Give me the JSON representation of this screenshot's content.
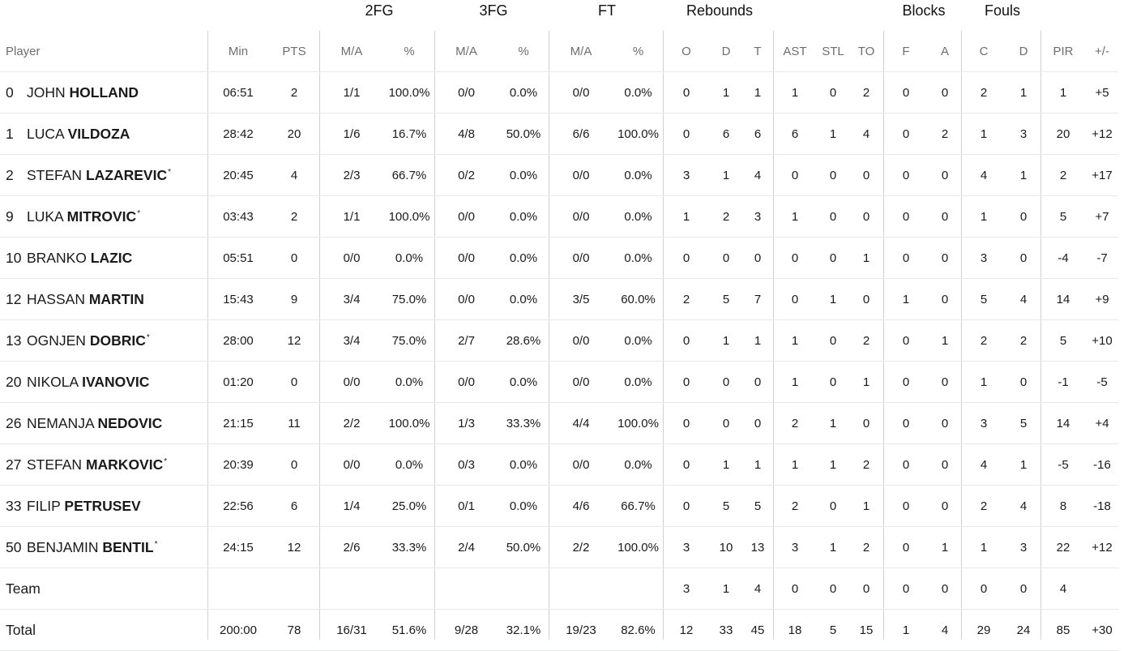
{
  "groups": [
    "2FG",
    "3FG",
    "FT",
    "Rebounds",
    "Blocks",
    "Fouls"
  ],
  "columns": {
    "player": "Player",
    "min": "Min",
    "pts": "PTS",
    "fg2_ma": "M/A",
    "fg2_pct": "%",
    "fg3_ma": "M/A",
    "fg3_pct": "%",
    "ft_ma": "M/A",
    "ft_pct": "%",
    "reb_o": "O",
    "reb_d": "D",
    "reb_t": "T",
    "ast": "AST",
    "stl": "STL",
    "to": "TO",
    "blk_f": "F",
    "blk_a": "A",
    "foul_c": "C",
    "foul_d": "D",
    "pir": "PIR",
    "pm": "+/-"
  },
  "players": [
    {
      "num": "0",
      "first": "JOHN",
      "last": "HOLLAND",
      "star": "",
      "min": "06:51",
      "pts": "2",
      "fg2_ma": "1/1",
      "fg2_pct": "100.0%",
      "fg3_ma": "0/0",
      "fg3_pct": "0.0%",
      "ft_ma": "0/0",
      "ft_pct": "0.0%",
      "reb_o": "0",
      "reb_d": "1",
      "reb_t": "1",
      "ast": "1",
      "stl": "0",
      "to": "2",
      "blk_f": "0",
      "blk_a": "0",
      "foul_c": "2",
      "foul_d": "1",
      "pir": "1",
      "pm": "+5"
    },
    {
      "num": "1",
      "first": "LUCA",
      "last": "VILDOZA",
      "star": "",
      "min": "28:42",
      "pts": "20",
      "fg2_ma": "1/6",
      "fg2_pct": "16.7%",
      "fg3_ma": "4/8",
      "fg3_pct": "50.0%",
      "ft_ma": "6/6",
      "ft_pct": "100.0%",
      "reb_o": "0",
      "reb_d": "6",
      "reb_t": "6",
      "ast": "6",
      "stl": "1",
      "to": "4",
      "blk_f": "0",
      "blk_a": "2",
      "foul_c": "1",
      "foul_d": "3",
      "pir": "20",
      "pm": "+12"
    },
    {
      "num": "2",
      "first": "STEFAN",
      "last": "LAZAREVIC",
      "star": "*",
      "min": "20:45",
      "pts": "4",
      "fg2_ma": "2/3",
      "fg2_pct": "66.7%",
      "fg3_ma": "0/2",
      "fg3_pct": "0.0%",
      "ft_ma": "0/0",
      "ft_pct": "0.0%",
      "reb_o": "3",
      "reb_d": "1",
      "reb_t": "4",
      "ast": "0",
      "stl": "0",
      "to": "0",
      "blk_f": "0",
      "blk_a": "0",
      "foul_c": "4",
      "foul_d": "1",
      "pir": "2",
      "pm": "+17"
    },
    {
      "num": "9",
      "first": "LUKA",
      "last": "MITROVIC",
      "star": "*",
      "min": "03:43",
      "pts": "2",
      "fg2_ma": "1/1",
      "fg2_pct": "100.0%",
      "fg3_ma": "0/0",
      "fg3_pct": "0.0%",
      "ft_ma": "0/0",
      "ft_pct": "0.0%",
      "reb_o": "1",
      "reb_d": "2",
      "reb_t": "3",
      "ast": "1",
      "stl": "0",
      "to": "0",
      "blk_f": "0",
      "blk_a": "0",
      "foul_c": "1",
      "foul_d": "0",
      "pir": "5",
      "pm": "+7"
    },
    {
      "num": "10",
      "first": "BRANKO",
      "last": "LAZIC",
      "star": "",
      "min": "05:51",
      "pts": "0",
      "fg2_ma": "0/0",
      "fg2_pct": "0.0%",
      "fg3_ma": "0/0",
      "fg3_pct": "0.0%",
      "ft_ma": "0/0",
      "ft_pct": "0.0%",
      "reb_o": "0",
      "reb_d": "0",
      "reb_t": "0",
      "ast": "0",
      "stl": "0",
      "to": "1",
      "blk_f": "0",
      "blk_a": "0",
      "foul_c": "3",
      "foul_d": "0",
      "pir": "-4",
      "pm": "-7"
    },
    {
      "num": "12",
      "first": "HASSAN",
      "last": "MARTIN",
      "star": "",
      "min": "15:43",
      "pts": "9",
      "fg2_ma": "3/4",
      "fg2_pct": "75.0%",
      "fg3_ma": "0/0",
      "fg3_pct": "0.0%",
      "ft_ma": "3/5",
      "ft_pct": "60.0%",
      "reb_o": "2",
      "reb_d": "5",
      "reb_t": "7",
      "ast": "0",
      "stl": "1",
      "to": "0",
      "blk_f": "1",
      "blk_a": "0",
      "foul_c": "5",
      "foul_d": "4",
      "pir": "14",
      "pm": "+9"
    },
    {
      "num": "13",
      "first": "OGNJEN",
      "last": "DOBRIC",
      "star": "*",
      "min": "28:00",
      "pts": "12",
      "fg2_ma": "3/4",
      "fg2_pct": "75.0%",
      "fg3_ma": "2/7",
      "fg3_pct": "28.6%",
      "ft_ma": "0/0",
      "ft_pct": "0.0%",
      "reb_o": "0",
      "reb_d": "1",
      "reb_t": "1",
      "ast": "1",
      "stl": "0",
      "to": "2",
      "blk_f": "0",
      "blk_a": "1",
      "foul_c": "2",
      "foul_d": "2",
      "pir": "5",
      "pm": "+10"
    },
    {
      "num": "20",
      "first": "NIKOLA",
      "last": "IVANOVIC",
      "star": "",
      "min": "01:20",
      "pts": "0",
      "fg2_ma": "0/0",
      "fg2_pct": "0.0%",
      "fg3_ma": "0/0",
      "fg3_pct": "0.0%",
      "ft_ma": "0/0",
      "ft_pct": "0.0%",
      "reb_o": "0",
      "reb_d": "0",
      "reb_t": "0",
      "ast": "1",
      "stl": "0",
      "to": "1",
      "blk_f": "0",
      "blk_a": "0",
      "foul_c": "1",
      "foul_d": "0",
      "pir": "-1",
      "pm": "-5"
    },
    {
      "num": "26",
      "first": "NEMANJA",
      "last": "NEDOVIC",
      "star": "",
      "min": "21:15",
      "pts": "11",
      "fg2_ma": "2/2",
      "fg2_pct": "100.0%",
      "fg3_ma": "1/3",
      "fg3_pct": "33.3%",
      "ft_ma": "4/4",
      "ft_pct": "100.0%",
      "reb_o": "0",
      "reb_d": "0",
      "reb_t": "0",
      "ast": "2",
      "stl": "1",
      "to": "0",
      "blk_f": "0",
      "blk_a": "0",
      "foul_c": "3",
      "foul_d": "5",
      "pir": "14",
      "pm": "+4"
    },
    {
      "num": "27",
      "first": "STEFAN",
      "last": "MARKOVIC",
      "star": "*",
      "min": "20:39",
      "pts": "0",
      "fg2_ma": "0/0",
      "fg2_pct": "0.0%",
      "fg3_ma": "0/3",
      "fg3_pct": "0.0%",
      "ft_ma": "0/0",
      "ft_pct": "0.0%",
      "reb_o": "0",
      "reb_d": "1",
      "reb_t": "1",
      "ast": "1",
      "stl": "1",
      "to": "2",
      "blk_f": "0",
      "blk_a": "0",
      "foul_c": "4",
      "foul_d": "1",
      "pir": "-5",
      "pm": "-16"
    },
    {
      "num": "33",
      "first": "FILIP",
      "last": "PETRUSEV",
      "star": "",
      "min": "22:56",
      "pts": "6",
      "fg2_ma": "1/4",
      "fg2_pct": "25.0%",
      "fg3_ma": "0/1",
      "fg3_pct": "0.0%",
      "ft_ma": "4/6",
      "ft_pct": "66.7%",
      "reb_o": "0",
      "reb_d": "5",
      "reb_t": "5",
      "ast": "2",
      "stl": "0",
      "to": "1",
      "blk_f": "0",
      "blk_a": "0",
      "foul_c": "2",
      "foul_d": "4",
      "pir": "8",
      "pm": "-18"
    },
    {
      "num": "50",
      "first": "BENJAMIN",
      "last": "BENTIL",
      "star": "*",
      "min": "24:15",
      "pts": "12",
      "fg2_ma": "2/6",
      "fg2_pct": "33.3%",
      "fg3_ma": "2/4",
      "fg3_pct": "50.0%",
      "ft_ma": "2/2",
      "ft_pct": "100.0%",
      "reb_o": "3",
      "reb_d": "10",
      "reb_t": "13",
      "ast": "3",
      "stl": "1",
      "to": "2",
      "blk_f": "0",
      "blk_a": "1",
      "foul_c": "1",
      "foul_d": "3",
      "pir": "22",
      "pm": "+12"
    }
  ],
  "team": {
    "label": "Team",
    "min": "",
    "pts": "",
    "fg2_ma": "",
    "fg2_pct": "",
    "fg3_ma": "",
    "fg3_pct": "",
    "ft_ma": "",
    "ft_pct": "",
    "reb_o": "3",
    "reb_d": "1",
    "reb_t": "4",
    "ast": "0",
    "stl": "0",
    "to": "0",
    "blk_f": "0",
    "blk_a": "0",
    "foul_c": "0",
    "foul_d": "0",
    "pir": "4",
    "pm": ""
  },
  "total": {
    "label": "Total",
    "min": "200:00",
    "pts": "78",
    "fg2_ma": "16/31",
    "fg2_pct": "51.6%",
    "fg3_ma": "9/28",
    "fg3_pct": "32.1%",
    "ft_ma": "19/23",
    "ft_pct": "82.6%",
    "reb_o": "12",
    "reb_d": "33",
    "reb_t": "45",
    "ast": "18",
    "stl": "5",
    "to": "15",
    "blk_f": "1",
    "blk_a": "4",
    "foul_c": "29",
    "foul_d": "24",
    "pir": "85",
    "pm": "+30"
  }
}
